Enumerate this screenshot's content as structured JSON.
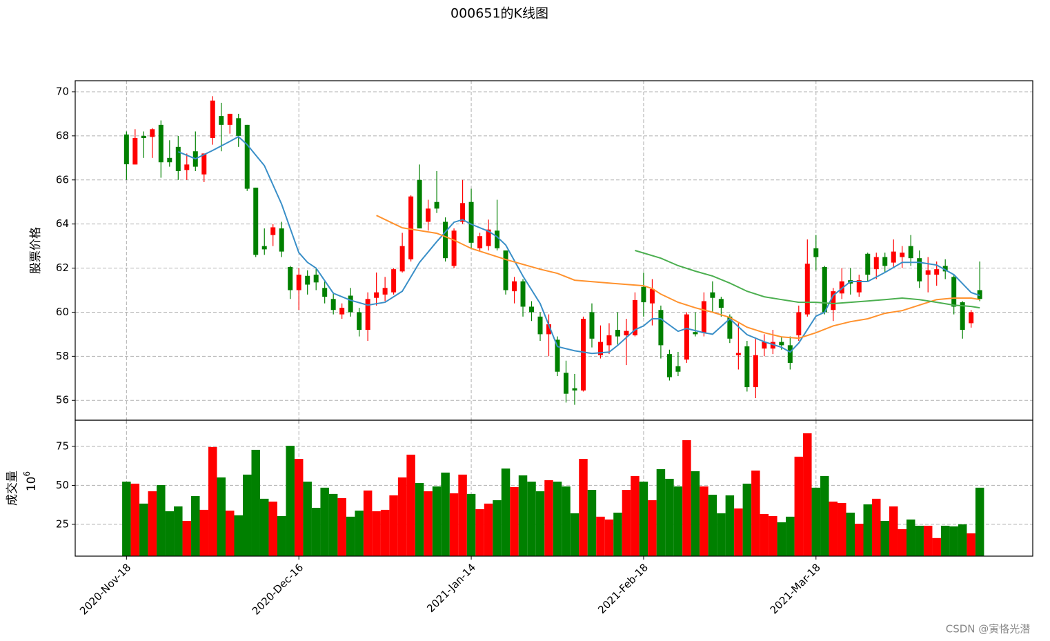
{
  "chart_data": [
    {
      "type": "candlestick",
      "title": "000651的K线图",
      "ylabel": "股票价格",
      "x": [
        0,
        1,
        2,
        3,
        4,
        5,
        6,
        7,
        8,
        9,
        10,
        11,
        12,
        13,
        14,
        15,
        16,
        17,
        18,
        19,
        20,
        21,
        22,
        23,
        24,
        25,
        26,
        27,
        28,
        29,
        30,
        31,
        32,
        33,
        34,
        35,
        36,
        37,
        38,
        39,
        40,
        41,
        42,
        43,
        44,
        45,
        46,
        47,
        48,
        49,
        50,
        51,
        52,
        53,
        54,
        55,
        56,
        57,
        58,
        59,
        60,
        61,
        62,
        63,
        64,
        65,
        66,
        67,
        68,
        69,
        70,
        71,
        72,
        73,
        74,
        75,
        76,
        77,
        78,
        79,
        80,
        81,
        82,
        83,
        84,
        85,
        86,
        87,
        88,
        89,
        90,
        91,
        92,
        93,
        94,
        95,
        96,
        97,
        98,
        99
      ],
      "open": [
        68.06,
        66.7,
        68.0,
        67.95,
        68.5,
        67.0,
        67.5,
        66.45,
        67.3,
        66.25,
        67.9,
        68.9,
        68.5,
        68.8,
        68.5,
        65.65,
        63.0,
        63.5,
        63.8,
        62.05,
        61.0,
        61.65,
        61.7,
        61.1,
        60.6,
        59.9,
        60.75,
        60.0,
        59.2,
        60.65,
        60.8,
        60.9,
        61.85,
        62.4,
        66.0,
        64.1,
        65.0,
        64.1,
        62.1,
        64.1,
        65.0,
        62.9,
        63.0,
        63.7,
        62.8,
        60.95,
        61.4,
        60.25,
        59.8,
        59.0,
        58.75,
        57.25,
        56.55,
        56.45,
        60.0,
        58.05,
        58.5,
        59.2,
        58.95,
        58.95,
        61.15,
        60.4,
        60.1,
        58.1,
        57.55,
        57.85,
        59.1,
        59.05,
        60.9,
        60.6,
        59.8,
        58.05,
        58.45,
        56.6,
        58.35,
        58.35,
        58.65,
        58.5,
        58.95,
        59.9,
        62.9,
        62.05,
        60.1,
        60.85,
        61.45,
        60.9,
        62.65,
        61.95,
        62.5,
        62.25,
        62.5,
        63.0,
        62.45,
        61.7,
        61.7,
        62.1,
        61.6,
        60.45,
        59.5,
        61.0
      ],
      "close": [
        66.71,
        67.9,
        67.9,
        68.3,
        66.8,
        66.8,
        66.4,
        66.7,
        66.6,
        67.2,
        69.6,
        68.5,
        69.0,
        68.0,
        65.6,
        62.6,
        62.85,
        63.85,
        62.75,
        61.0,
        61.7,
        61.25,
        61.35,
        60.7,
        60.1,
        60.2,
        60.0,
        59.2,
        60.6,
        60.9,
        61.1,
        61.95,
        63.0,
        65.25,
        63.8,
        64.7,
        64.7,
        62.45,
        63.7,
        64.95,
        63.15,
        63.45,
        63.75,
        62.9,
        61.0,
        61.4,
        60.25,
        60.0,
        59.0,
        59.45,
        57.3,
        56.3,
        56.45,
        59.7,
        58.8,
        58.65,
        58.95,
        58.9,
        59.15,
        60.55,
        60.45,
        61.05,
        58.5,
        57.05,
        57.3,
        59.9,
        59.0,
        60.5,
        60.65,
        60.2,
        58.8,
        58.15,
        56.6,
        58.05,
        58.65,
        58.65,
        58.5,
        57.7,
        60.0,
        62.2,
        62.5,
        60.0,
        60.95,
        61.4,
        61.3,
        61.45,
        61.7,
        62.5,
        62.1,
        62.75,
        62.7,
        62.45,
        61.4,
        61.9,
        61.95,
        61.85,
        60.25,
        59.2,
        60.0,
        60.6
      ],
      "high": [
        68.2,
        68.3,
        68.2,
        68.35,
        68.7,
        67.8,
        68.0,
        67.2,
        68.2,
        67.2,
        69.8,
        69.5,
        69.0,
        69.0,
        68.5,
        65.65,
        63.8,
        64.0,
        64.1,
        62.1,
        62.0,
        61.9,
        62.0,
        61.4,
        60.9,
        60.4,
        61.1,
        60.2,
        60.9,
        61.8,
        61.6,
        62.0,
        63.6,
        65.3,
        66.7,
        65.1,
        66.4,
        64.3,
        63.8,
        66.0,
        65.6,
        63.6,
        64.2,
        65.1,
        62.8,
        61.6,
        61.5,
        60.5,
        60.0,
        59.9,
        58.9,
        57.8,
        57.2,
        59.8,
        60.4,
        59.4,
        59.5,
        60.0,
        59.7,
        60.9,
        61.8,
        61.5,
        60.3,
        58.3,
        58.2,
        60.0,
        60.0,
        60.9,
        61.4,
        60.7,
        59.9,
        59.5,
        58.7,
        58.8,
        59.0,
        59.2,
        58.9,
        58.9,
        60.3,
        63.3,
        63.5,
        62.1,
        61.1,
        62.0,
        62.0,
        61.7,
        62.7,
        62.7,
        62.7,
        63.3,
        63.0,
        63.5,
        62.8,
        62.5,
        62.3,
        62.4,
        61.7,
        60.5,
        60.1,
        62.3
      ],
      "low": [
        66.0,
        66.7,
        67.0,
        67.0,
        66.1,
        66.6,
        66.0,
        66.0,
        66.4,
        65.9,
        67.6,
        67.3,
        68.1,
        67.5,
        65.5,
        62.5,
        62.6,
        63.0,
        62.5,
        60.6,
        60.1,
        60.8,
        61.0,
        60.4,
        59.9,
        59.7,
        59.8,
        58.9,
        58.7,
        60.3,
        60.5,
        60.8,
        61.8,
        62.3,
        63.8,
        63.7,
        64.5,
        62.3,
        62.0,
        64.0,
        62.9,
        62.8,
        62.8,
        62.8,
        60.8,
        60.4,
        59.8,
        59.6,
        58.7,
        58.0,
        57.1,
        55.9,
        55.8,
        56.4,
        58.4,
        57.9,
        58.1,
        58.5,
        57.6,
        58.9,
        59.8,
        59.4,
        57.9,
        56.9,
        57.1,
        57.7,
        58.9,
        58.9,
        60.0,
        59.8,
        58.6,
        57.4,
        56.4,
        56.1,
        58.0,
        58.1,
        58.3,
        57.4,
        58.7,
        59.8,
        61.9,
        59.9,
        59.6,
        60.6,
        60.8,
        60.7,
        61.4,
        61.5,
        61.8,
        62.0,
        62.0,
        62.1,
        61.1,
        60.9,
        61.2,
        61.5,
        59.9,
        58.8,
        59.3,
        60.5
      ],
      "up_color": "#ff0000",
      "down_color": "#008000",
      "series": [
        {
          "color": "#3a8fc8",
          "x": [
            6,
            8,
            10,
            12,
            13,
            14,
            16,
            18,
            20,
            21,
            22,
            24,
            26,
            28,
            30,
            32,
            34,
            36,
            38,
            39,
            40,
            42,
            43,
            44,
            46,
            48,
            50,
            52,
            54,
            56,
            57,
            59,
            60,
            61,
            62,
            64,
            65,
            67,
            68,
            70,
            72,
            74,
            76,
            77,
            78,
            80,
            81,
            82,
            84,
            86,
            88,
            90,
            92,
            94,
            96,
            98,
            99
          ],
          "values": [
            67.28,
            66.96,
            67.34,
            67.75,
            67.96,
            67.6,
            66.65,
            64.9,
            62.7,
            62.26,
            62.0,
            60.86,
            60.54,
            60.32,
            60.45,
            60.95,
            62.26,
            63.2,
            64.08,
            64.2,
            63.99,
            63.67,
            63.42,
            63.05,
            61.64,
            60.39,
            58.44,
            58.25,
            58.13,
            58.19,
            58.5,
            59.2,
            59.38,
            59.7,
            59.7,
            59.13,
            59.26,
            59.07,
            59.0,
            59.7,
            58.98,
            58.66,
            58.41,
            58.19,
            58.6,
            59.82,
            60.0,
            60.76,
            61.39,
            61.39,
            61.8,
            62.26,
            62.26,
            62.14,
            61.7,
            60.89,
            60.76
          ]
        },
        {
          "color": "#ff922e",
          "x": [
            29,
            32,
            36,
            38,
            40,
            42,
            44,
            46,
            48,
            50,
            52,
            56,
            60,
            61,
            62,
            64,
            66,
            68,
            70,
            72,
            74,
            76,
            78,
            80,
            82,
            84,
            86,
            88,
            90,
            92,
            94,
            96,
            98,
            99
          ],
          "values": [
            64.39,
            63.83,
            63.58,
            63.27,
            62.89,
            62.64,
            62.39,
            62.17,
            61.95,
            61.76,
            61.45,
            61.32,
            61.2,
            61.07,
            60.82,
            60.45,
            60.2,
            60.0,
            59.76,
            59.32,
            59.07,
            58.88,
            58.82,
            59.07,
            59.38,
            59.57,
            59.7,
            59.95,
            60.07,
            60.32,
            60.57,
            60.64,
            60.64,
            60.57
          ]
        },
        {
          "color": "#4caf50",
          "x": [
            59,
            62,
            64,
            66,
            68,
            70,
            72,
            74,
            76,
            78,
            80,
            82,
            84,
            86,
            88,
            90,
            92,
            94,
            96,
            98,
            99
          ],
          "values": [
            62.8,
            62.45,
            62.11,
            61.86,
            61.64,
            61.32,
            60.95,
            60.7,
            60.57,
            60.45,
            60.45,
            60.39,
            60.45,
            60.51,
            60.57,
            60.64,
            60.57,
            60.45,
            60.32,
            60.26,
            60.2
          ]
        }
      ],
      "xlim": [
        -5.95,
        105.15
      ],
      "ylim": [
        55.1,
        70.5
      ],
      "yticks": [
        56,
        58,
        60,
        62,
        64,
        66,
        68,
        70
      ],
      "xticks": [
        {
          "value": 0,
          "label": "2020-Nov-18"
        },
        {
          "value": 20,
          "label": "2020-Dec-16"
        },
        {
          "value": 40,
          "label": "2021-Jan-14"
        },
        {
          "value": 60,
          "label": "2021-Feb-18"
        },
        {
          "value": 80,
          "label": "2021-Mar-18"
        }
      ],
      "grid": true
    },
    {
      "type": "bar",
      "ylabel": "成交量",
      "offset_text": {
        "base": "10",
        "exponent": "6"
      },
      "x": [
        0,
        1,
        2,
        3,
        4,
        5,
        6,
        7,
        8,
        9,
        10,
        11,
        12,
        13,
        14,
        15,
        16,
        17,
        18,
        19,
        20,
        21,
        22,
        23,
        24,
        25,
        26,
        27,
        28,
        29,
        30,
        31,
        32,
        33,
        34,
        35,
        36,
        37,
        38,
        39,
        40,
        41,
        42,
        43,
        44,
        45,
        46,
        47,
        48,
        49,
        50,
        51,
        52,
        53,
        54,
        55,
        56,
        57,
        58,
        59,
        60,
        61,
        62,
        63,
        64,
        65,
        66,
        67,
        68,
        69,
        70,
        71,
        72,
        73,
        74,
        75,
        76,
        77,
        78,
        79,
        80,
        81,
        82,
        83,
        84,
        85,
        86,
        87,
        88,
        89,
        90,
        91,
        92,
        93,
        94,
        95,
        96,
        97,
        98,
        99
      ],
      "values": [
        52.4,
        51.1,
        38.3,
        46.2,
        50.2,
        33.4,
        36.5,
        27.2,
        43.1,
        34.3,
        74.6,
        55.1,
        33.8,
        30.8,
        56.9,
        72.8,
        41.4,
        39.6,
        30.3,
        75.4,
        67.0,
        52.4,
        35.6,
        48.5,
        44.5,
        41.8,
        29.9,
        33.8,
        46.7,
        33.4,
        34.3,
        43.6,
        55.1,
        69.7,
        51.5,
        46.2,
        49.3,
        58.2,
        44.9,
        56.9,
        44.5,
        34.7,
        38.3,
        40.5,
        60.8,
        48.9,
        56.4,
        52.4,
        46.2,
        53.3,
        52.4,
        49.3,
        32.1,
        67.0,
        47.1,
        29.9,
        28.1,
        32.5,
        47.1,
        56.0,
        52.4,
        40.5,
        60.4,
        54.2,
        49.3,
        79.0,
        59.1,
        49.3,
        44.0,
        32.1,
        43.6,
        35.2,
        51.1,
        59.5,
        31.6,
        30.3,
        26.3,
        29.9,
        68.4,
        83.4,
        48.5,
        56.0,
        39.6,
        38.7,
        32.5,
        25.4,
        37.8,
        41.4,
        27.2,
        36.5,
        21.9,
        28.1,
        24.1,
        24.1,
        16.2,
        24.1,
        23.7,
        25.0,
        19.2,
        48.5
      ],
      "xlim": [
        -5.95,
        105.15
      ],
      "ylim": [
        4.6,
        91.8
      ],
      "yticks": [
        25,
        50,
        75
      ],
      "xticks": [
        {
          "value": 0,
          "label": "2020-Nov-18"
        },
        {
          "value": 20,
          "label": "2020-Dec-16"
        },
        {
          "value": 40,
          "label": "2021-Jan-14"
        },
        {
          "value": 60,
          "label": "2021-Feb-18"
        },
        {
          "value": 80,
          "label": "2021-Mar-18"
        }
      ],
      "grid": true
    }
  ],
  "watermark": "CSDN @寅恪光潜"
}
